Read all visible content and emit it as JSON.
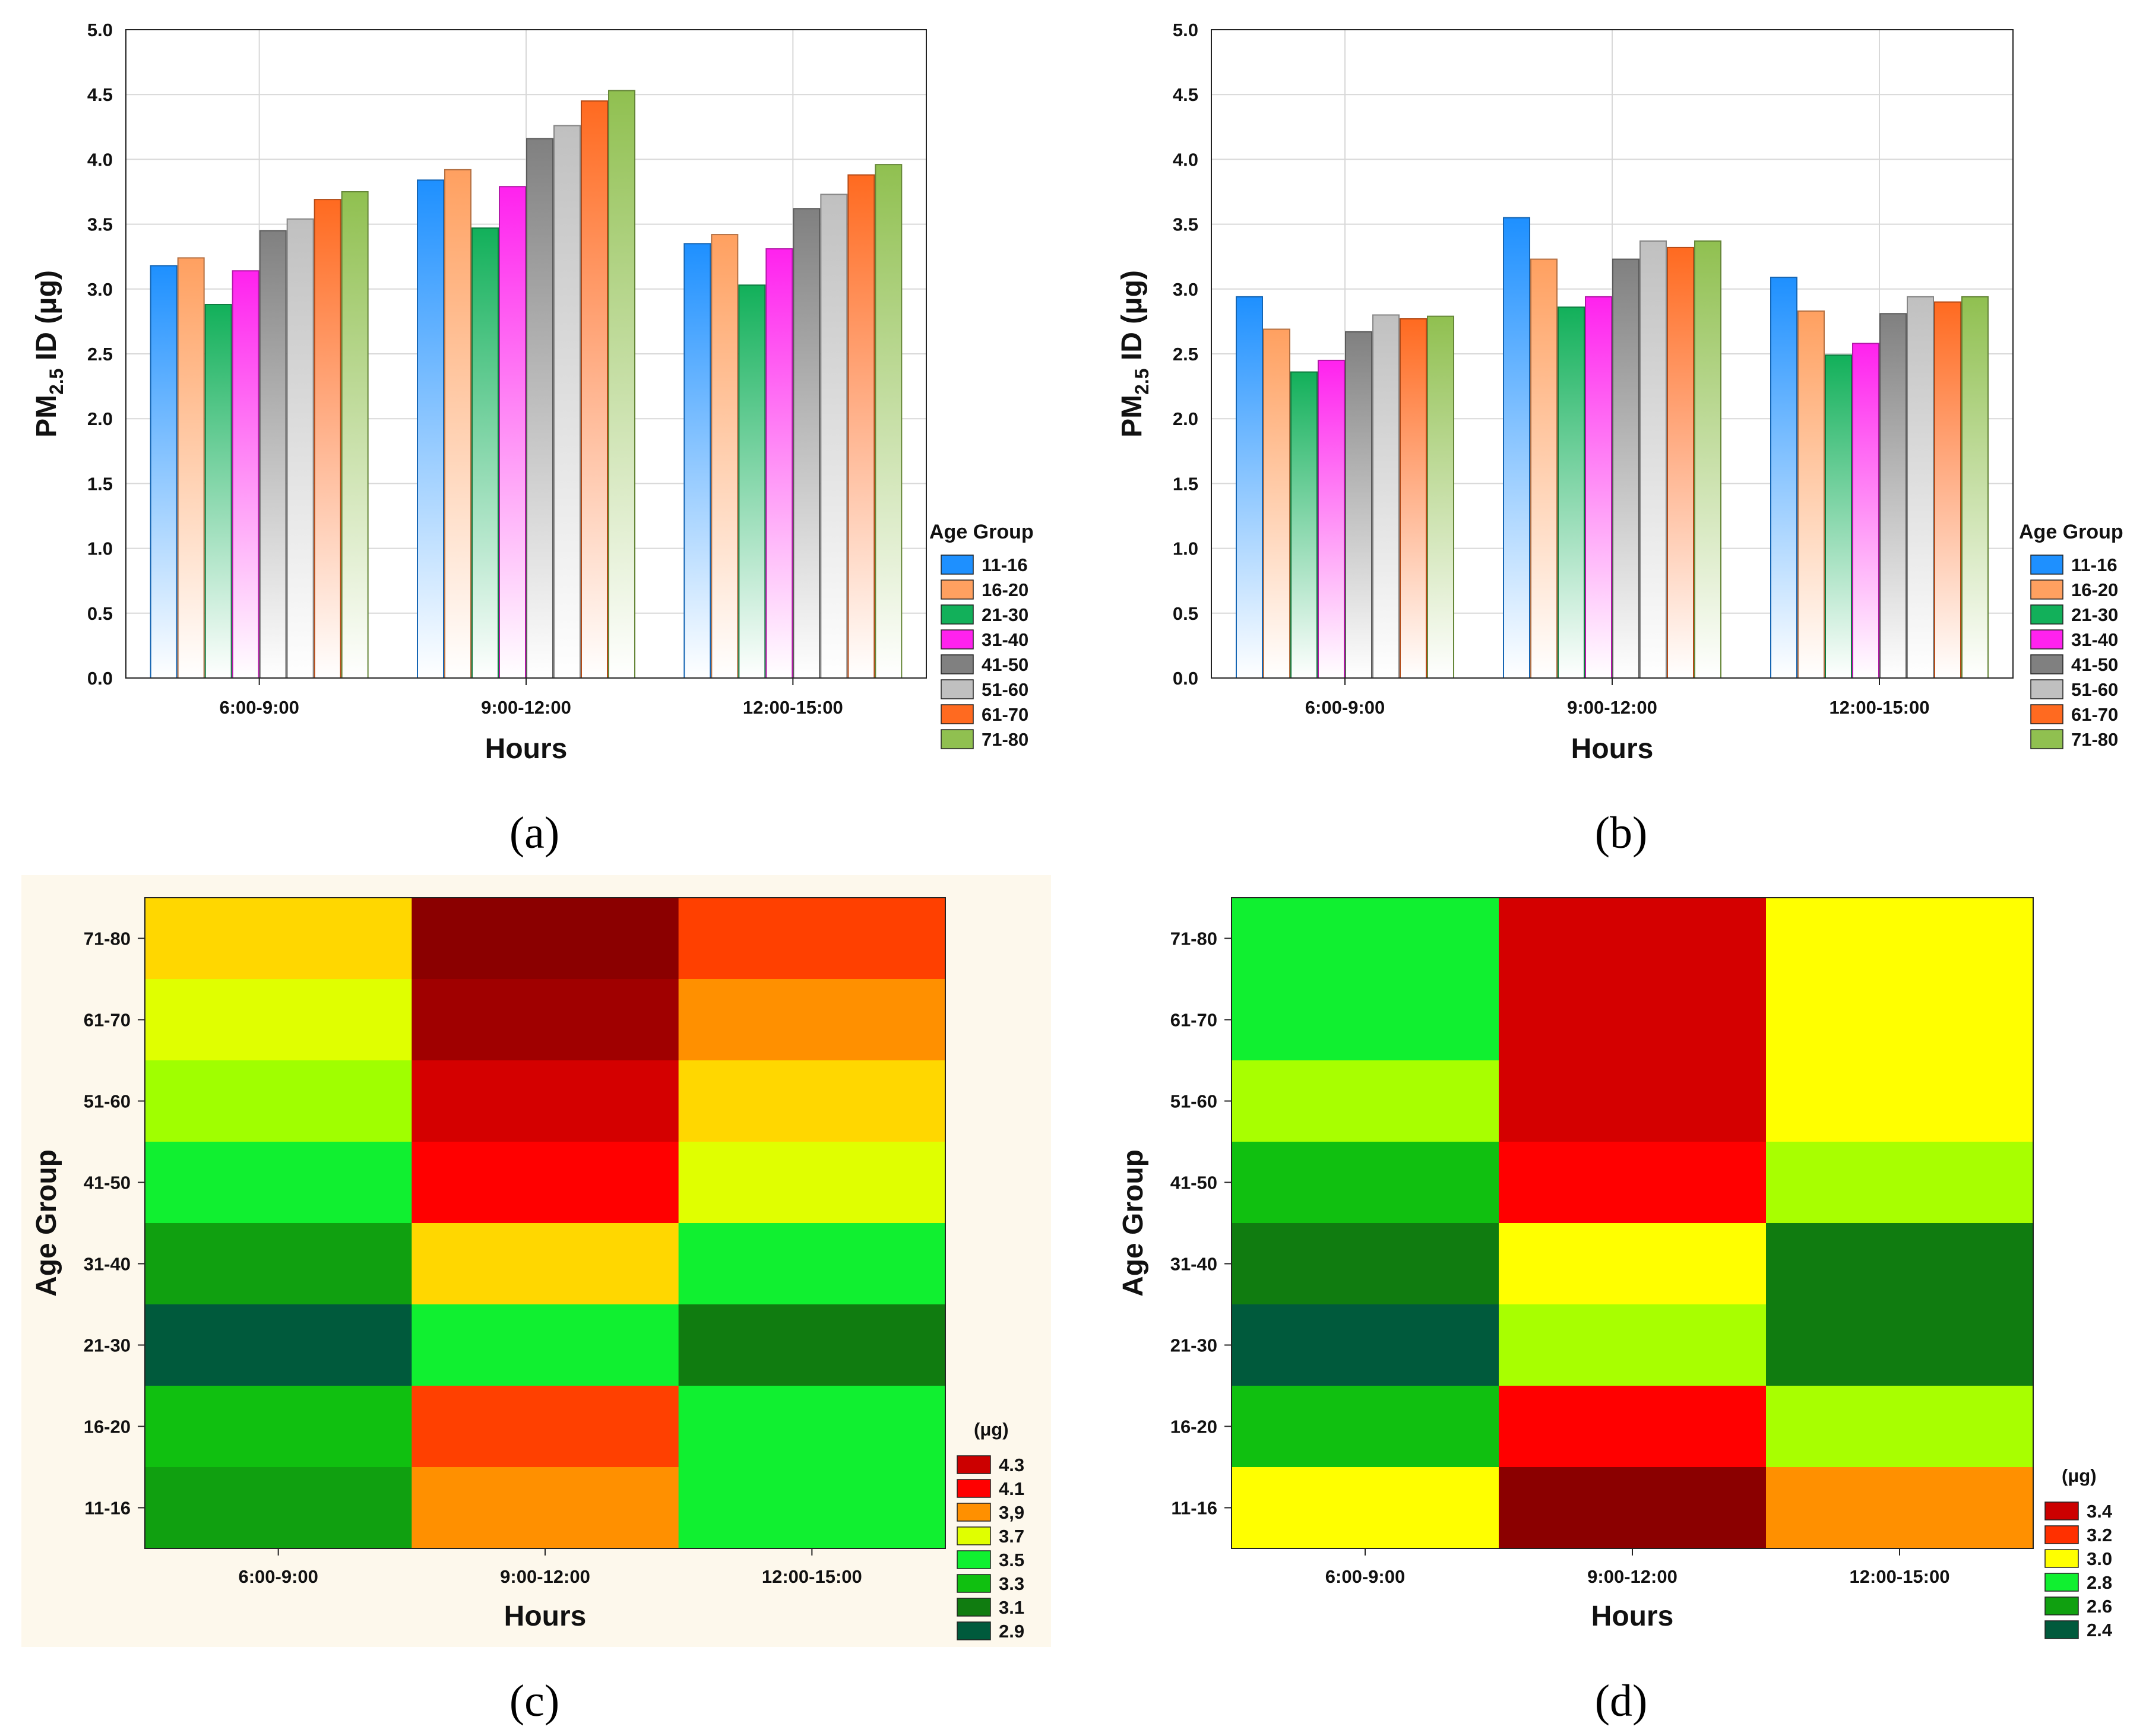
{
  "panels": {
    "a": {
      "caption": "(a)"
    },
    "b": {
      "caption": "(b)"
    },
    "c": {
      "caption": "(c)"
    },
    "d": {
      "caption": "(d)"
    }
  },
  "chart_data": [
    {
      "id": "a",
      "type": "bar",
      "xlabel": "Hours",
      "ylabel_main": "PM",
      "ylabel_sub": "2.5",
      "ylabel_rest": " ID (μg)",
      "ylim": [
        0,
        5
      ],
      "yticks": [
        "0.0",
        "0.5",
        "1.0",
        "1.5",
        "2.0",
        "2.5",
        "3.0",
        "3.5",
        "4.0",
        "4.5",
        "5.0"
      ],
      "grid": true,
      "legend_title": "Age Group",
      "legend_position": "right",
      "categories": [
        "6:00-9:00",
        "9:00-12:00",
        "12:00-15:00"
      ],
      "series": [
        {
          "name": "11-16",
          "color": "#1e90ff",
          "values": [
            3.18,
            3.84,
            3.35
          ]
        },
        {
          "name": "16-20",
          "color": "#ffa060",
          "values": [
            3.24,
            3.92,
            3.42
          ]
        },
        {
          "name": "21-30",
          "color": "#12b05a",
          "values": [
            2.88,
            3.47,
            3.03
          ]
        },
        {
          "name": "31-40",
          "color": "#ff22ee",
          "values": [
            3.14,
            3.79,
            3.31
          ]
        },
        {
          "name": "41-50",
          "color": "#808080",
          "values": [
            3.45,
            4.16,
            3.62
          ]
        },
        {
          "name": "51-60",
          "color": "#c0c0c0",
          "values": [
            3.54,
            4.26,
            3.73
          ]
        },
        {
          "name": "61-70",
          "color": "#ff6a20",
          "values": [
            3.69,
            4.45,
            3.88
          ]
        },
        {
          "name": "71-80",
          "color": "#90c050",
          "values": [
            3.75,
            4.53,
            3.96
          ]
        }
      ]
    },
    {
      "id": "b",
      "type": "bar",
      "xlabel": "Hours",
      "ylabel_main": "PM",
      "ylabel_sub": "2.5",
      "ylabel_rest": " ID (μg)",
      "ylim": [
        0,
        5
      ],
      "yticks": [
        "0.0",
        "0.5",
        "1.0",
        "1.5",
        "2.0",
        "2.5",
        "3.0",
        "3.5",
        "4.0",
        "4.5",
        "5.0"
      ],
      "grid": true,
      "legend_title": "Age Group",
      "legend_position": "right",
      "categories": [
        "6:00-9:00",
        "9:00-12:00",
        "12:00-15:00"
      ],
      "series": [
        {
          "name": "11-16",
          "color": "#1e90ff",
          "values": [
            2.94,
            3.55,
            3.09
          ]
        },
        {
          "name": "16-20",
          "color": "#ffa060",
          "values": [
            2.69,
            3.23,
            2.83
          ]
        },
        {
          "name": "21-30",
          "color": "#12b05a",
          "values": [
            2.36,
            2.86,
            2.49
          ]
        },
        {
          "name": "31-40",
          "color": "#ff22ee",
          "values": [
            2.45,
            2.94,
            2.58
          ]
        },
        {
          "name": "41-50",
          "color": "#808080",
          "values": [
            2.67,
            3.23,
            2.81
          ]
        },
        {
          "name": "51-60",
          "color": "#c0c0c0",
          "values": [
            2.8,
            3.37,
            2.94
          ]
        },
        {
          "name": "61-70",
          "color": "#ff6a20",
          "values": [
            2.77,
            3.32,
            2.9
          ]
        },
        {
          "name": "71-80",
          "color": "#90c050",
          "values": [
            2.79,
            3.37,
            2.94
          ]
        }
      ]
    },
    {
      "id": "c",
      "type": "heatmap",
      "xlabel": "Hours",
      "ylabel": "Age Group",
      "x": [
        "6:00-9:00",
        "9:00-12:00",
        "12:00-15:00"
      ],
      "y": [
        "71-80",
        "61-70",
        "51-60",
        "41-50",
        "31-40",
        "21-30",
        "16-20",
        "11-16"
      ],
      "values": [
        [
          3.75,
          4.53,
          3.96
        ],
        [
          3.69,
          4.45,
          3.88
        ],
        [
          3.54,
          4.26,
          3.73
        ],
        [
          3.45,
          4.16,
          3.62
        ],
        [
          3.14,
          3.79,
          3.31
        ],
        [
          2.88,
          3.47,
          3.03
        ],
        [
          3.24,
          3.92,
          3.42
        ],
        [
          3.18,
          3.84,
          3.35
        ]
      ],
      "colors": [
        [
          "#ffd700",
          "#8b0000",
          "#ff4000"
        ],
        [
          "#e0ff00",
          "#a00000",
          "#ff9000"
        ],
        [
          "#a0ff00",
          "#d40000",
          "#ffd700"
        ],
        [
          "#10f030",
          "#ff0000",
          "#e0ff00"
        ],
        [
          "#10a010",
          "#ffd700",
          "#10f030"
        ],
        [
          "#005a3c",
          "#10f030",
          "#107c10"
        ],
        [
          "#10c010",
          "#ff4000",
          "#10f030"
        ],
        [
          "#10a010",
          "#ff9000",
          "#10f030"
        ]
      ],
      "legend_title": "(μg)",
      "legend_position": "bottom-right",
      "legend": [
        {
          "label": "4.3",
          "color": "#cc0000"
        },
        {
          "label": "4.1",
          "color": "#ff0000"
        },
        {
          "label": "3,9",
          "color": "#ff9000"
        },
        {
          "label": "3.7",
          "color": "#e0ff00"
        },
        {
          "label": "3.5",
          "color": "#10f030"
        },
        {
          "label": "3.3",
          "color": "#10c010"
        },
        {
          "label": "3.1",
          "color": "#107c10"
        },
        {
          "label": "2.9",
          "color": "#005a3c"
        }
      ],
      "background": "#fdf8ec"
    },
    {
      "id": "d",
      "type": "heatmap",
      "xlabel": "Hours",
      "ylabel": "Age Group",
      "x": [
        "6:00-9:00",
        "9:00-12:00",
        "12:00-15:00"
      ],
      "y": [
        "71-80",
        "61-70",
        "51-60",
        "41-50",
        "31-40",
        "21-30",
        "16-20",
        "11-16"
      ],
      "values": [
        [
          2.79,
          3.37,
          2.94
        ],
        [
          2.77,
          3.32,
          2.9
        ],
        [
          2.8,
          3.37,
          2.94
        ],
        [
          2.67,
          3.23,
          2.81
        ],
        [
          2.45,
          2.94,
          2.58
        ],
        [
          2.36,
          2.86,
          2.49
        ],
        [
          2.69,
          3.23,
          2.83
        ],
        [
          2.94,
          3.55,
          3.09
        ]
      ],
      "colors": [
        [
          "#10f030",
          "#d40000",
          "#ffff00"
        ],
        [
          "#10f030",
          "#d40000",
          "#ffff00"
        ],
        [
          "#a8ff00",
          "#d40000",
          "#ffff00"
        ],
        [
          "#10c010",
          "#ff0000",
          "#a8ff00"
        ],
        [
          "#107c10",
          "#ffff00",
          "#107c10"
        ],
        [
          "#005a3c",
          "#a8ff00",
          "#107c10"
        ],
        [
          "#10c010",
          "#ff0000",
          "#a8ff00"
        ],
        [
          "#ffff00",
          "#8b0000",
          "#ff9000"
        ]
      ],
      "legend_title": "(μg)",
      "legend_position": "bottom-right",
      "legend": [
        {
          "label": "3.4",
          "color": "#cc0000"
        },
        {
          "label": "3.2",
          "color": "#ff3000"
        },
        {
          "label": "3.0",
          "color": "#ffff00"
        },
        {
          "label": "2.8",
          "color": "#10f030"
        },
        {
          "label": "2.6",
          "color": "#10a010"
        },
        {
          "label": "2.4",
          "color": "#005a3c"
        }
      ],
      "background": "#ffffff"
    }
  ]
}
